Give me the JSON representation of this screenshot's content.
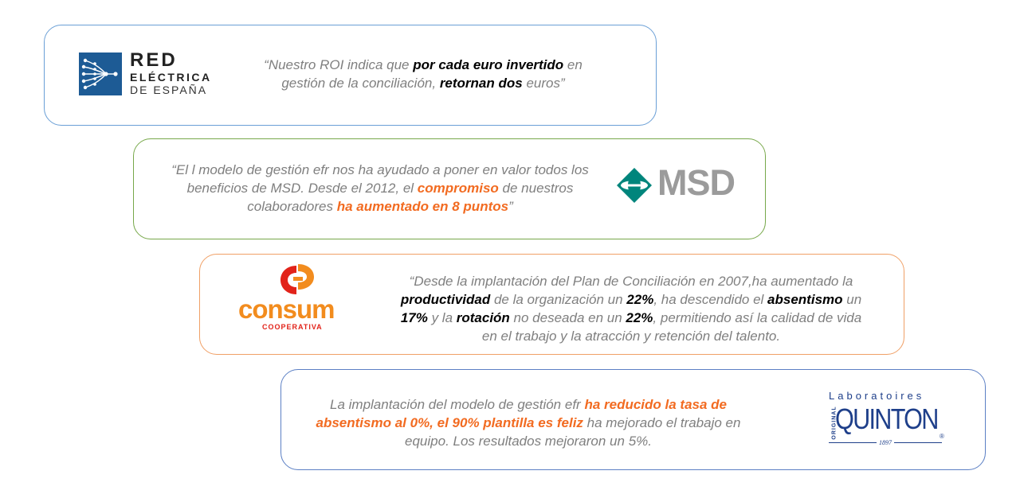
{
  "cards": [
    {
      "company": "Red Eléctrica de España",
      "logo": {
        "line1": "RED",
        "line2": "ELÉCTRICA",
        "line3": "DE ESPAÑA",
        "color": "#1d5b95"
      },
      "border_color": "#6a9fd6",
      "quote": {
        "p1": "“Nuestro ROI indica que ",
        "b1": "por cada euro invertido",
        "p2": " en gestión de la conciliación, ",
        "b2": "retornan dos",
        "p3": " euros”"
      }
    },
    {
      "company": "MSD",
      "logo": {
        "text": "MSD",
        "color": "#00857c",
        "text_color": "#9b9b9b"
      },
      "border_color": "#77a84a",
      "quote": {
        "p1": "“El l modelo de gestión efr nos ha ayudado a poner en valor todos los beneficios de MSD. Desde el 2012, el ",
        "b1": "compromiso",
        "p2": " de nuestros colaboradores ",
        "b2": "ha aumentado en 8 puntos",
        "p3": "”"
      }
    },
    {
      "company": "Consum Cooperativa",
      "logo": {
        "text": "consum",
        "sub": "COOPERATIVA",
        "color": "#f28c1e",
        "red": "#e2231a"
      },
      "border_color": "#f0a066",
      "quote": {
        "p1": "“Desde la implantación del Plan de Conciliación en 2007,ha aumentado la ",
        "b1": "productividad",
        "p2": " de la organización un ",
        "b2": "22%",
        "p3": ", ha descendido el ",
        "b3": "absentismo",
        "p4": " un ",
        "b4": "17%",
        "p5": " y la ",
        "b5": "rotación",
        "p6": " no deseada en un ",
        "b6": "22%",
        "p7": ", permitiendo así la calidad de vida en el trabajo y la atracción y retención del talento."
      }
    },
    {
      "company": "Laboratoires Quinton",
      "logo": {
        "top": "Laboratoires",
        "side": "ORIGINAL",
        "main": "QUINTON",
        "year": "1897",
        "color": "#1e3f8a"
      },
      "border_color": "#5b7fc4",
      "quote": {
        "p1": "La implantación del modelo de gestión efr ",
        "b1": "ha reducido la tasa de absentismo al 0%, el 90% plantilla es feliz",
        "p2": "  ha mejorado el trabajo en equipo. Los resultados mejoraron un 5%."
      }
    }
  ]
}
